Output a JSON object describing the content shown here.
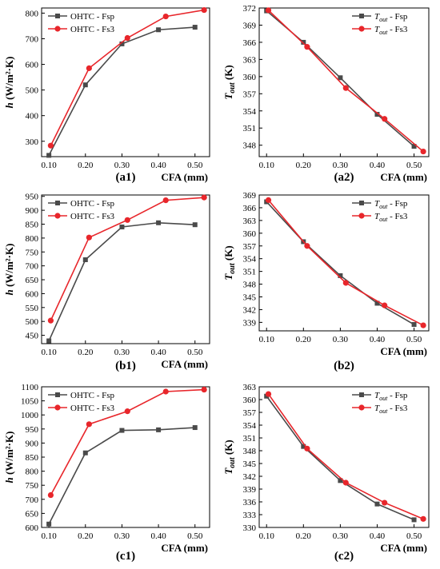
{
  "colors": {
    "series1": "#4a4a4a",
    "series2": "#e8262b"
  },
  "chart_data": [
    {
      "type": "line",
      "panel": "(a1)",
      "xlabel": "CFA (mm)",
      "ylabel": "h (W/m²·K)",
      "xlim": [
        0.08,
        0.54
      ],
      "ylim": [
        240,
        820
      ],
      "xticks": [
        "0.10",
        "0.20",
        "0.30",
        "0.40",
        "0.50"
      ],
      "yticks": [
        300,
        400,
        500,
        600,
        700,
        800
      ],
      "legend_position": "top-left",
      "series": [
        {
          "name": "OHTC - Fsp",
          "marker": "square",
          "color": "#4a4a4a",
          "x": [
            0.1,
            0.2,
            0.3,
            0.4,
            0.5
          ],
          "y": [
            245,
            520,
            680,
            735,
            745
          ]
        },
        {
          "name": "OHTC - Fs3",
          "marker": "circle",
          "color": "#e8262b",
          "x": [
            0.105,
            0.21,
            0.315,
            0.42,
            0.525
          ],
          "y": [
            283,
            585,
            703,
            787,
            812
          ]
        }
      ]
    },
    {
      "type": "line",
      "panel": "(a2)",
      "xlabel": "CFA (mm)",
      "ylabel": "Tout (K)",
      "xlim": [
        0.08,
        0.54
      ],
      "ylim": [
        346,
        372
      ],
      "xticks": [
        "0.10",
        "0.20",
        "0.30",
        "0.40",
        "0.50"
      ],
      "yticks": [
        348,
        351,
        354,
        357,
        360,
        363,
        366,
        369,
        372
      ],
      "legend_position": "top-right",
      "series": [
        {
          "name": "Tout - Fsp",
          "marker": "square",
          "color": "#4a4a4a",
          "x": [
            0.1,
            0.2,
            0.3,
            0.4,
            0.5
          ],
          "y": [
            371.5,
            366.0,
            359.8,
            353.4,
            347.8
          ]
        },
        {
          "name": "Tout - Fs3",
          "marker": "circle",
          "color": "#e8262b",
          "x": [
            0.105,
            0.21,
            0.315,
            0.42,
            0.525
          ],
          "y": [
            371.6,
            365.2,
            358.0,
            352.6,
            346.9
          ]
        }
      ]
    },
    {
      "type": "line",
      "panel": "(b1)",
      "xlabel": "CFA (mm)",
      "ylabel": "h (W/m²·K)",
      "xlim": [
        0.08,
        0.54
      ],
      "ylim": [
        420,
        955
      ],
      "xticks": [
        "0.10",
        "0.20",
        "0.30",
        "0.40",
        "0.50"
      ],
      "yticks": [
        450,
        500,
        550,
        600,
        650,
        700,
        750,
        800,
        850,
        900,
        950
      ],
      "legend_position": "top-left",
      "series": [
        {
          "name": "OHTC - Fsp",
          "marker": "square",
          "color": "#4a4a4a",
          "x": [
            0.1,
            0.2,
            0.3,
            0.4,
            0.5
          ],
          "y": [
            430,
            722,
            840,
            855,
            848
          ]
        },
        {
          "name": "OHTC - Fs3",
          "marker": "circle",
          "color": "#e8262b",
          "x": [
            0.105,
            0.21,
            0.315,
            0.42,
            0.525
          ],
          "y": [
            503,
            802,
            865,
            936,
            946
          ]
        }
      ]
    },
    {
      "type": "line",
      "panel": "(b2)",
      "xlabel": "CFA (mm)",
      "ylabel": "Tout (K)",
      "xlim": [
        0.08,
        0.54
      ],
      "ylim": [
        337,
        369
      ],
      "xticks": [
        "0.10",
        "0.20",
        "0.30",
        "0.40",
        "0.50"
      ],
      "yticks": [
        339,
        342,
        345,
        348,
        351,
        354,
        357,
        360,
        363,
        366,
        369
      ],
      "legend_position": "top-right",
      "series": [
        {
          "name": "Tout - Fsp",
          "marker": "square",
          "color": "#4a4a4a",
          "x": [
            0.1,
            0.2,
            0.3,
            0.4,
            0.5
          ],
          "y": [
            367.4,
            358.0,
            350.0,
            343.5,
            338.5
          ]
        },
        {
          "name": "Tout - Fs3",
          "marker": "circle",
          "color": "#e8262b",
          "x": [
            0.105,
            0.21,
            0.315,
            0.42,
            0.525
          ],
          "y": [
            367.8,
            357.0,
            348.3,
            343.0,
            338.3
          ]
        }
      ]
    },
    {
      "type": "line",
      "panel": "(c1)",
      "xlabel": "CFA (mm)",
      "ylabel": "h (W/m²·K)",
      "xlim": [
        0.08,
        0.54
      ],
      "ylim": [
        600,
        1100
      ],
      "xticks": [
        "0.10",
        "0.20",
        "0.30",
        "0.40",
        "0.50"
      ],
      "yticks": [
        600,
        650,
        700,
        750,
        800,
        850,
        900,
        950,
        1000,
        1050,
        1100
      ],
      "legend_position": "top-left",
      "series": [
        {
          "name": "OHTC - Fsp",
          "marker": "square",
          "color": "#4a4a4a",
          "x": [
            0.1,
            0.2,
            0.3,
            0.4,
            0.5
          ],
          "y": [
            612,
            865,
            945,
            947,
            955
          ]
        },
        {
          "name": "OHTC - Fs3",
          "marker": "circle",
          "color": "#e8262b",
          "x": [
            0.105,
            0.21,
            0.315,
            0.42,
            0.525
          ],
          "y": [
            715,
            967,
            1013,
            1083,
            1090
          ]
        }
      ]
    },
    {
      "type": "line",
      "panel": "(c2)",
      "xlabel": "CFA (mm)",
      "ylabel": "Tout (K)",
      "xlim": [
        0.08,
        0.54
      ],
      "ylim": [
        330,
        363
      ],
      "xticks": [
        "0.10",
        "0.20",
        "0.30",
        "0.40",
        "0.50"
      ],
      "yticks": [
        330,
        333,
        336,
        339,
        342,
        345,
        348,
        351,
        354,
        357,
        360,
        363
      ],
      "legend_position": "top-right",
      "series": [
        {
          "name": "Tout - Fsp",
          "marker": "square",
          "color": "#4a4a4a",
          "x": [
            0.1,
            0.2,
            0.3,
            0.4,
            0.5
          ],
          "y": [
            360.8,
            349.0,
            341.0,
            335.5,
            331.8
          ]
        },
        {
          "name": "Tout - Fs3",
          "marker": "circle",
          "color": "#e8262b",
          "x": [
            0.105,
            0.21,
            0.315,
            0.42,
            0.525
          ],
          "y": [
            361.3,
            348.5,
            340.5,
            335.8,
            332.0
          ]
        }
      ]
    }
  ]
}
